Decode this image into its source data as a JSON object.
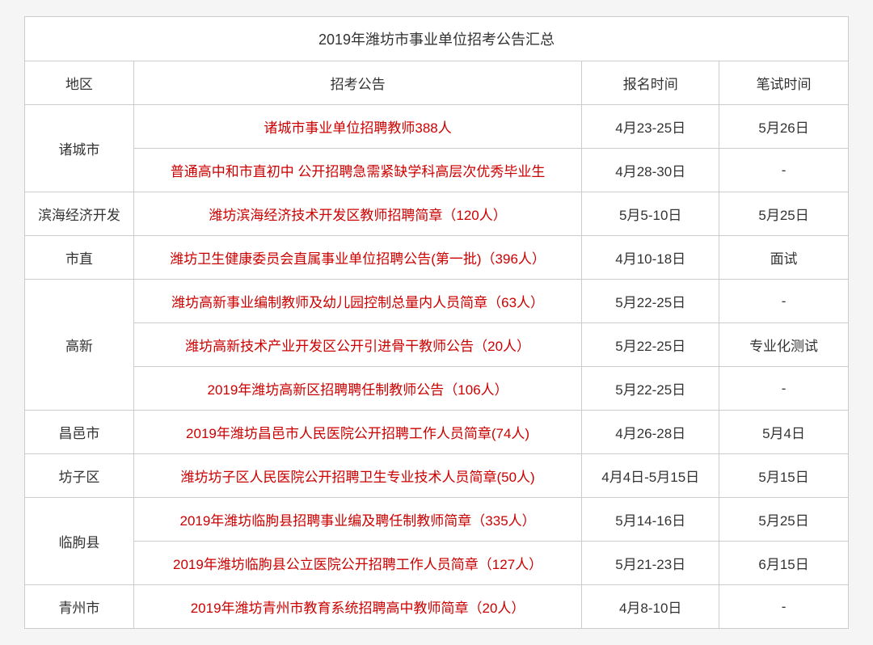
{
  "table": {
    "title": "2019年潍坊市事业单位招考公告汇总",
    "headers": {
      "region": "地区",
      "announcement": "招考公告",
      "signup_time": "报名时间",
      "exam_time": "笔试时间"
    },
    "colors": {
      "text_normal": "#333333",
      "text_link": "#cc0000",
      "border": "#cccccc",
      "background": "#ffffff"
    },
    "font_sizes": {
      "title": 18,
      "header": 17,
      "cell": 17
    },
    "column_widths": {
      "region": 135,
      "announcement": 555,
      "signup": 170,
      "exam": 160
    },
    "regions": [
      {
        "name": "诸城市",
        "rowspan": 2,
        "rows": [
          {
            "announcement": "诸城市事业单位招聘教师388人",
            "signup_time": "4月23-25日",
            "exam_time": "5月26日"
          },
          {
            "announcement": "普通高中和市直初中 公开招聘急需紧缺学科高层次优秀毕业生",
            "signup_time": "4月28-30日",
            "exam_time": "-"
          }
        ]
      },
      {
        "name": "滨海经济开发",
        "rowspan": 1,
        "rows": [
          {
            "announcement": "潍坊滨海经济技术开发区教师招聘简章（120人）",
            "signup_time": "5月5-10日",
            "exam_time": "5月25日"
          }
        ]
      },
      {
        "name": "市直",
        "rowspan": 1,
        "rows": [
          {
            "announcement": "潍坊卫生健康委员会直属事业单位招聘公告(第一批)（396人）",
            "signup_time": "4月10-18日",
            "exam_time": "面试"
          }
        ]
      },
      {
        "name": "高新",
        "rowspan": 3,
        "rows": [
          {
            "announcement": "潍坊高新事业编制教师及幼儿园控制总量内人员简章（63人）",
            "signup_time": "5月22-25日",
            "exam_time": "-"
          },
          {
            "announcement": "潍坊高新技术产业开发区公开引进骨干教师公告（20人）",
            "signup_time": "5月22-25日",
            "exam_time": "专业化测试"
          },
          {
            "announcement": "2019年潍坊高新区招聘聘任制教师公告（106人）",
            "signup_time": "5月22-25日",
            "exam_time": "-"
          }
        ]
      },
      {
        "name": "昌邑市",
        "rowspan": 1,
        "rows": [
          {
            "announcement": "2019年潍坊昌邑市人民医院公开招聘工作人员简章(74人)",
            "signup_time": "4月26-28日",
            "exam_time": "5月4日"
          }
        ]
      },
      {
        "name": "坊子区",
        "rowspan": 1,
        "rows": [
          {
            "announcement": "潍坊坊子区人民医院公开招聘卫生专业技术人员简章(50人)",
            "signup_time": "4月4日-5月15日",
            "exam_time": "5月15日"
          }
        ]
      },
      {
        "name": "临朐县",
        "rowspan": 2,
        "rows": [
          {
            "announcement": "2019年潍坊临朐县招聘事业编及聘任制教师简章（335人）",
            "signup_time": "5月14-16日",
            "exam_time": "5月25日"
          },
          {
            "announcement": "2019年潍坊临朐县公立医院公开招聘工作人员简章（127人）",
            "signup_time": "5月21-23日",
            "exam_time": "6月15日"
          }
        ]
      },
      {
        "name": "青州市",
        "rowspan": 1,
        "rows": [
          {
            "announcement": "2019年潍坊青州市教育系统招聘高中教师简章（20人）",
            "signup_time": "4月8-10日",
            "exam_time": "-"
          }
        ]
      }
    ]
  }
}
